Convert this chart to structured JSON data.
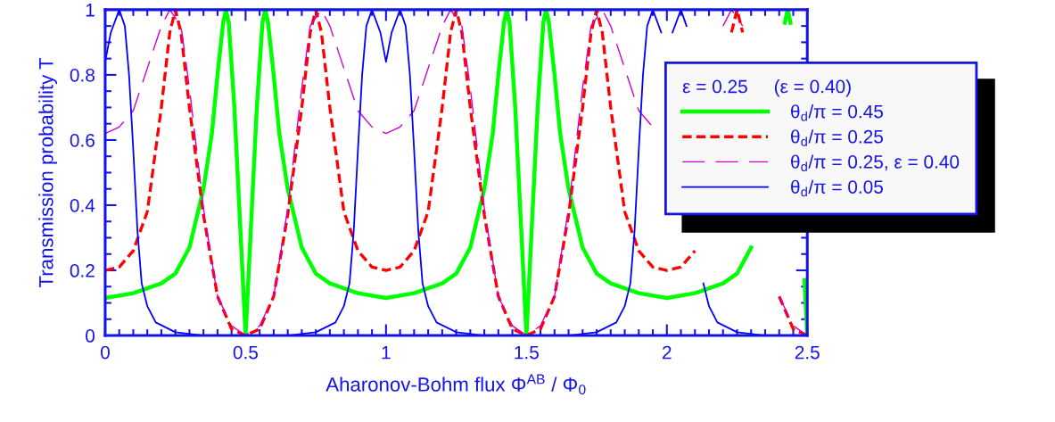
{
  "chart_data": {
    "type": "line",
    "xlabel": "Aharonov-Bohm flux Φ$^{AB}$ / Φ$_{0}$",
    "ylabel": "Transmission probability T",
    "legend_title": "ε = 0.25     (ε = 0.40)",
    "xlim": [
      0,
      2.5
    ],
    "xticks": [
      0,
      0.5,
      1,
      1.5,
      2,
      2.5
    ],
    "ylim": [
      0,
      1
    ],
    "yticks": [
      0,
      0.2,
      0.4,
      0.6,
      0.8,
      1
    ],
    "grid": false,
    "legend": "right",
    "marker": "none",
    "series": [
      {
        "name": "θ$_{d}$/π = 0.45",
        "color": "#00ff00",
        "line_style": "solid",
        "x": [
          0,
          0.1,
          0.2,
          0.25,
          0.3,
          0.35,
          0.38,
          0.4,
          0.42,
          0.43,
          0.44,
          0.46,
          0.48,
          0.5,
          0.52,
          0.54,
          0.56,
          0.57,
          0.58,
          0.6,
          0.62,
          0.65,
          0.7,
          0.75,
          0.8,
          0.9,
          1,
          1.1,
          1.2,
          1.25,
          1.3,
          1.35,
          1.38,
          1.4,
          1.42,
          1.43,
          1.44,
          1.46,
          1.48,
          1.5,
          1.52,
          1.54,
          1.56,
          1.57,
          1.58,
          1.6,
          1.62,
          1.65,
          1.7,
          1.75,
          1.8,
          1.9,
          2,
          2.1,
          2.2,
          2.25,
          2.3,
          2.35,
          2.38,
          2.4,
          2.42,
          2.43,
          2.44,
          2.46,
          2.48,
          2.49,
          2.5
        ],
        "values": [
          0.115,
          0.13,
          0.16,
          0.19,
          0.27,
          0.45,
          0.62,
          0.8,
          0.96,
          1,
          0.96,
          0.7,
          0.35,
          0,
          0.35,
          0.7,
          0.96,
          1,
          0.96,
          0.8,
          0.62,
          0.45,
          0.27,
          0.19,
          0.16,
          0.13,
          0.115,
          0.13,
          0.16,
          0.19,
          0.27,
          0.45,
          0.62,
          0.8,
          0.96,
          1,
          0.96,
          0.7,
          0.35,
          0,
          0.35,
          0.7,
          0.96,
          1,
          0.96,
          0.8,
          0.62,
          0.45,
          0.27,
          0.19,
          0.16,
          0.13,
          0.115,
          0.13,
          0.16,
          0.19,
          0.27,
          null,
          null,
          null,
          0.96,
          1,
          0.96,
          null,
          null,
          0.17,
          0
        ]
      },
      {
        "name": "θ$_{d}$/π = 0.25",
        "color": "#ff0000",
        "line_style": "dashed",
        "x": [
          0,
          0.05,
          0.1,
          0.15,
          0.2,
          0.23,
          0.25,
          0.27,
          0.3,
          0.35,
          0.4,
          0.45,
          0.5,
          0.55,
          0.6,
          0.65,
          0.7,
          0.73,
          0.75,
          0.77,
          0.8,
          0.85,
          0.9,
          0.95,
          1,
          1.05,
          1.1,
          1.15,
          1.2,
          1.23,
          1.25,
          1.27,
          1.3,
          1.35,
          1.4,
          1.45,
          1.5,
          1.55,
          1.6,
          1.65,
          1.7,
          1.73,
          1.75,
          1.77,
          1.8,
          1.85,
          1.9,
          1.95,
          2,
          2.05,
          2.1,
          2.15,
          2.2,
          2.23,
          2.25,
          2.27,
          2.3,
          2.35,
          2.4,
          2.45,
          2.5
        ],
        "values": [
          0.2,
          0.21,
          0.26,
          0.38,
          0.7,
          0.93,
          1,
          0.93,
          0.7,
          0.37,
          0.12,
          0.02,
          0,
          0.02,
          0.12,
          0.37,
          0.7,
          0.93,
          1,
          0.93,
          0.7,
          0.38,
          0.26,
          0.21,
          0.2,
          0.21,
          0.26,
          0.38,
          0.7,
          0.93,
          1,
          0.93,
          0.7,
          0.37,
          0.12,
          0.02,
          0,
          0.02,
          0.12,
          0.37,
          0.7,
          0.93,
          1,
          0.93,
          0.7,
          0.38,
          0.26,
          0.21,
          0.2,
          0.21,
          0.26,
          null,
          null,
          0.93,
          1,
          0.93,
          null,
          null,
          0.12,
          0.02,
          0
        ]
      },
      {
        "name": "θ$_{d}$/π = 0.25, ε = 0.40",
        "color": "#cc00cc",
        "line_style": "dashed",
        "x": [
          0,
          0.05,
          0.1,
          0.15,
          0.2,
          0.23,
          0.27,
          0.3,
          0.35,
          0.4,
          0.45,
          0.5,
          0.55,
          0.6,
          0.65,
          0.7,
          0.73,
          0.77,
          0.8,
          0.85,
          0.9,
          0.95,
          1,
          1.05,
          1.1,
          1.15,
          1.2,
          1.23,
          1.27,
          1.3,
          1.35,
          1.4,
          1.45,
          1.5,
          1.55,
          1.6,
          1.65,
          1.7,
          1.73,
          1.77,
          1.8,
          1.85,
          1.9,
          1.95,
          2,
          2.05,
          2.1,
          2.15,
          2.2,
          2.23,
          2.27,
          2.3,
          2.35,
          2.4,
          2.45,
          2.5
        ],
        "values": [
          0.62,
          0.64,
          0.69,
          0.82,
          0.95,
          1,
          0.95,
          0.76,
          0.39,
          0.12,
          0.03,
          0,
          0.03,
          0.12,
          0.39,
          0.76,
          0.95,
          1,
          0.95,
          0.82,
          0.69,
          0.64,
          0.62,
          0.64,
          0.69,
          0.82,
          0.95,
          1,
          0.95,
          0.76,
          0.39,
          0.12,
          0.03,
          0,
          0.03,
          0.12,
          0.39,
          0.76,
          0.95,
          1,
          0.95,
          0.82,
          0.69,
          0.64,
          null,
          null,
          null,
          null,
          0.95,
          1,
          0.95,
          null,
          null,
          0.12,
          0.03,
          0
        ]
      },
      {
        "name": "θ$_{d}$/π = 0.05",
        "color": "#0000ff",
        "line_style": "solid",
        "x": [
          0,
          0.02,
          0.05,
          0.07,
          0.085,
          0.1,
          0.115,
          0.13,
          0.15,
          0.18,
          0.25,
          0.35,
          0.5,
          0.65,
          0.75,
          0.82,
          0.85,
          0.87,
          0.885,
          0.9,
          0.915,
          0.93,
          0.95,
          0.98,
          1,
          1.02,
          1.05,
          1.07,
          1.085,
          1.1,
          1.115,
          1.13,
          1.15,
          1.18,
          1.25,
          1.35,
          1.5,
          1.65,
          1.75,
          1.82,
          1.85,
          1.87,
          1.885,
          1.9,
          1.915,
          1.93,
          1.95,
          1.98,
          2,
          2.02,
          2.05,
          2.07,
          2.085,
          2.1,
          2.115,
          2.13,
          2.15,
          2.18,
          2.25,
          2.35,
          2.5
        ],
        "values": [
          0.84,
          0.93,
          1,
          0.95,
          0.8,
          0.57,
          0.32,
          0.16,
          0.09,
          0.04,
          0.01,
          0,
          0,
          0,
          0.01,
          0.04,
          0.09,
          0.16,
          0.32,
          0.57,
          0.8,
          0.95,
          1,
          0.93,
          0.84,
          0.93,
          1,
          0.95,
          0.8,
          0.57,
          0.32,
          0.16,
          0.09,
          0.04,
          0.01,
          0,
          0,
          0,
          0.01,
          0.04,
          0.09,
          0.16,
          0.32,
          0.57,
          0.8,
          0.95,
          1,
          0.93,
          null,
          0.93,
          1,
          0.95,
          null,
          null,
          null,
          0.16,
          0.09,
          0.04,
          0.01,
          0,
          0
        ]
      }
    ]
  }
}
